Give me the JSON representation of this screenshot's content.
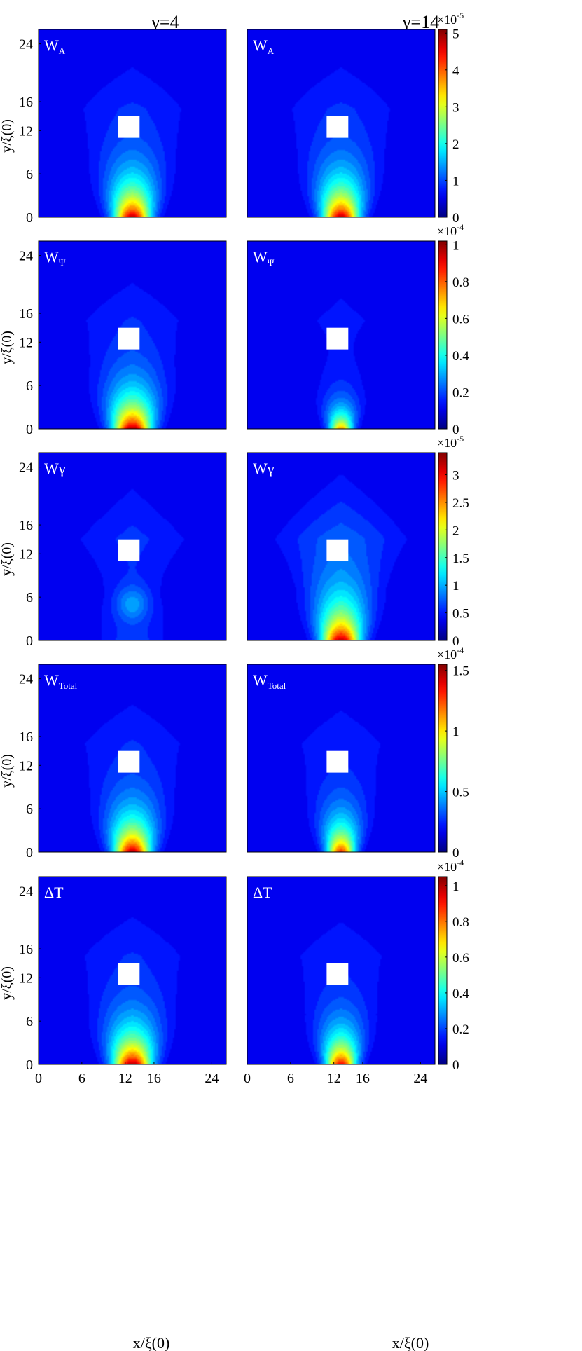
{
  "chart_data": {
    "type": "heatmap",
    "column_titles": [
      "γ=4",
      "γ=14"
    ],
    "xlabel": "x/ξ(0)",
    "ylabel": "y/ξ(0)",
    "x_ticks": [
      "0",
      "6",
      "12",
      "16",
      "24"
    ],
    "y_ticks": [
      "0",
      "6",
      "12",
      "16",
      "24"
    ],
    "xlim": [
      0,
      26
    ],
    "ylim": [
      0,
      26
    ],
    "colormap": "jet",
    "hole": {
      "x": [
        11,
        14
      ],
      "y": [
        11,
        14
      ]
    },
    "source": {
      "x": 13,
      "y": 0
    },
    "rows": [
      {
        "label_main": "W",
        "label_sub": "A",
        "colorbar": {
          "exponent_label": "×10",
          "exponent": "-5",
          "max": 5.1,
          "ticks": [
            0,
            1,
            2,
            3,
            4,
            5
          ],
          "tick_labels": [
            "0",
            "1",
            "2",
            "3",
            "4",
            "5"
          ]
        },
        "panels": [
          {
            "gamma": 4,
            "peak": 4.9,
            "decay": 4.6,
            "width": 1.7,
            "halo": 0.05,
            "halo_y": 15,
            "halo_w": 13,
            "blob": 0
          },
          {
            "gamma": 14,
            "peak": 4.9,
            "decay": 4.6,
            "width": 1.7,
            "halo": 0.05,
            "halo_y": 15,
            "halo_w": 13,
            "blob": 0
          }
        ]
      },
      {
        "label_main": "W",
        "label_sub": "Ψ",
        "colorbar": {
          "exponent_label": "×10",
          "exponent": "-4",
          "max": 1.02,
          "ticks": [
            0,
            0.2,
            0.4,
            0.6,
            0.8,
            1
          ],
          "tick_labels": [
            "0",
            "0.2",
            "0.4",
            "0.6",
            "0.8",
            "1"
          ]
        },
        "panels": [
          {
            "gamma": 4,
            "peak": 1.0,
            "decay": 4.4,
            "width": 1.8,
            "halo": 0.05,
            "halo_y": 15,
            "halo_w": 12,
            "blob": 0
          },
          {
            "gamma": 14,
            "peak": 0.72,
            "decay": 2.8,
            "width": 1.1,
            "halo": 0.05,
            "halo_y": 15,
            "halo_w": 12,
            "blob": 0
          }
        ]
      },
      {
        "label_main": "Wγ",
        "label_sub": "",
        "colorbar": {
          "exponent_label": "×10",
          "exponent": "-5",
          "max": 3.4,
          "ticks": [
            0,
            0.5,
            1,
            1.5,
            2,
            2.5,
            3
          ],
          "tick_labels": [
            "0",
            "0.5",
            "1",
            "1.5",
            "2",
            "2.5",
            "3"
          ]
        },
        "panels": [
          {
            "gamma": 4,
            "peak": 0.35,
            "decay": 7.0,
            "width": 3.0,
            "halo": 0.08,
            "halo_y": 14,
            "halo_w": 12,
            "blob": 0.15
          },
          {
            "gamma": 14,
            "peak": 3.3,
            "decay": 4.8,
            "width": 1.8,
            "halo": 0.1,
            "halo_y": 14,
            "halo_w": 13,
            "blob": 0
          }
        ]
      },
      {
        "label_main": "W",
        "label_sub": "Total",
        "colorbar": {
          "exponent_label": "×10",
          "exponent": "-4",
          "max": 1.55,
          "ticks": [
            0,
            0.5,
            1,
            1.5
          ],
          "tick_labels": [
            "0",
            "0.5",
            "1",
            "1.5"
          ]
        },
        "panels": [
          {
            "gamma": 4,
            "peak": 1.5,
            "decay": 4.4,
            "width": 1.7,
            "halo": 0.05,
            "halo_y": 15,
            "halo_w": 13,
            "blob": 0
          },
          {
            "gamma": 14,
            "peak": 1.3,
            "decay": 4.0,
            "width": 1.3,
            "halo": 0.05,
            "halo_y": 15,
            "halo_w": 13,
            "blob": 0
          }
        ]
      },
      {
        "label_main": "ΔT",
        "label_sub": "",
        "colorbar": {
          "exponent_label": "×10",
          "exponent": "-4",
          "max": 1.05,
          "ticks": [
            0,
            0.2,
            0.4,
            0.6,
            0.8,
            1
          ],
          "tick_labels": [
            "0",
            "0.2",
            "0.4",
            "0.6",
            "0.8",
            "1"
          ]
        },
        "panels": [
          {
            "gamma": 4,
            "peak": 1.03,
            "decay": 4.4,
            "width": 1.8,
            "halo": 0.05,
            "halo_y": 15,
            "halo_w": 13,
            "blob": 0
          },
          {
            "gamma": 14,
            "peak": 0.95,
            "decay": 4.0,
            "width": 1.4,
            "halo": 0.05,
            "halo_y": 15,
            "halo_w": 13,
            "blob": 0
          }
        ]
      }
    ]
  }
}
